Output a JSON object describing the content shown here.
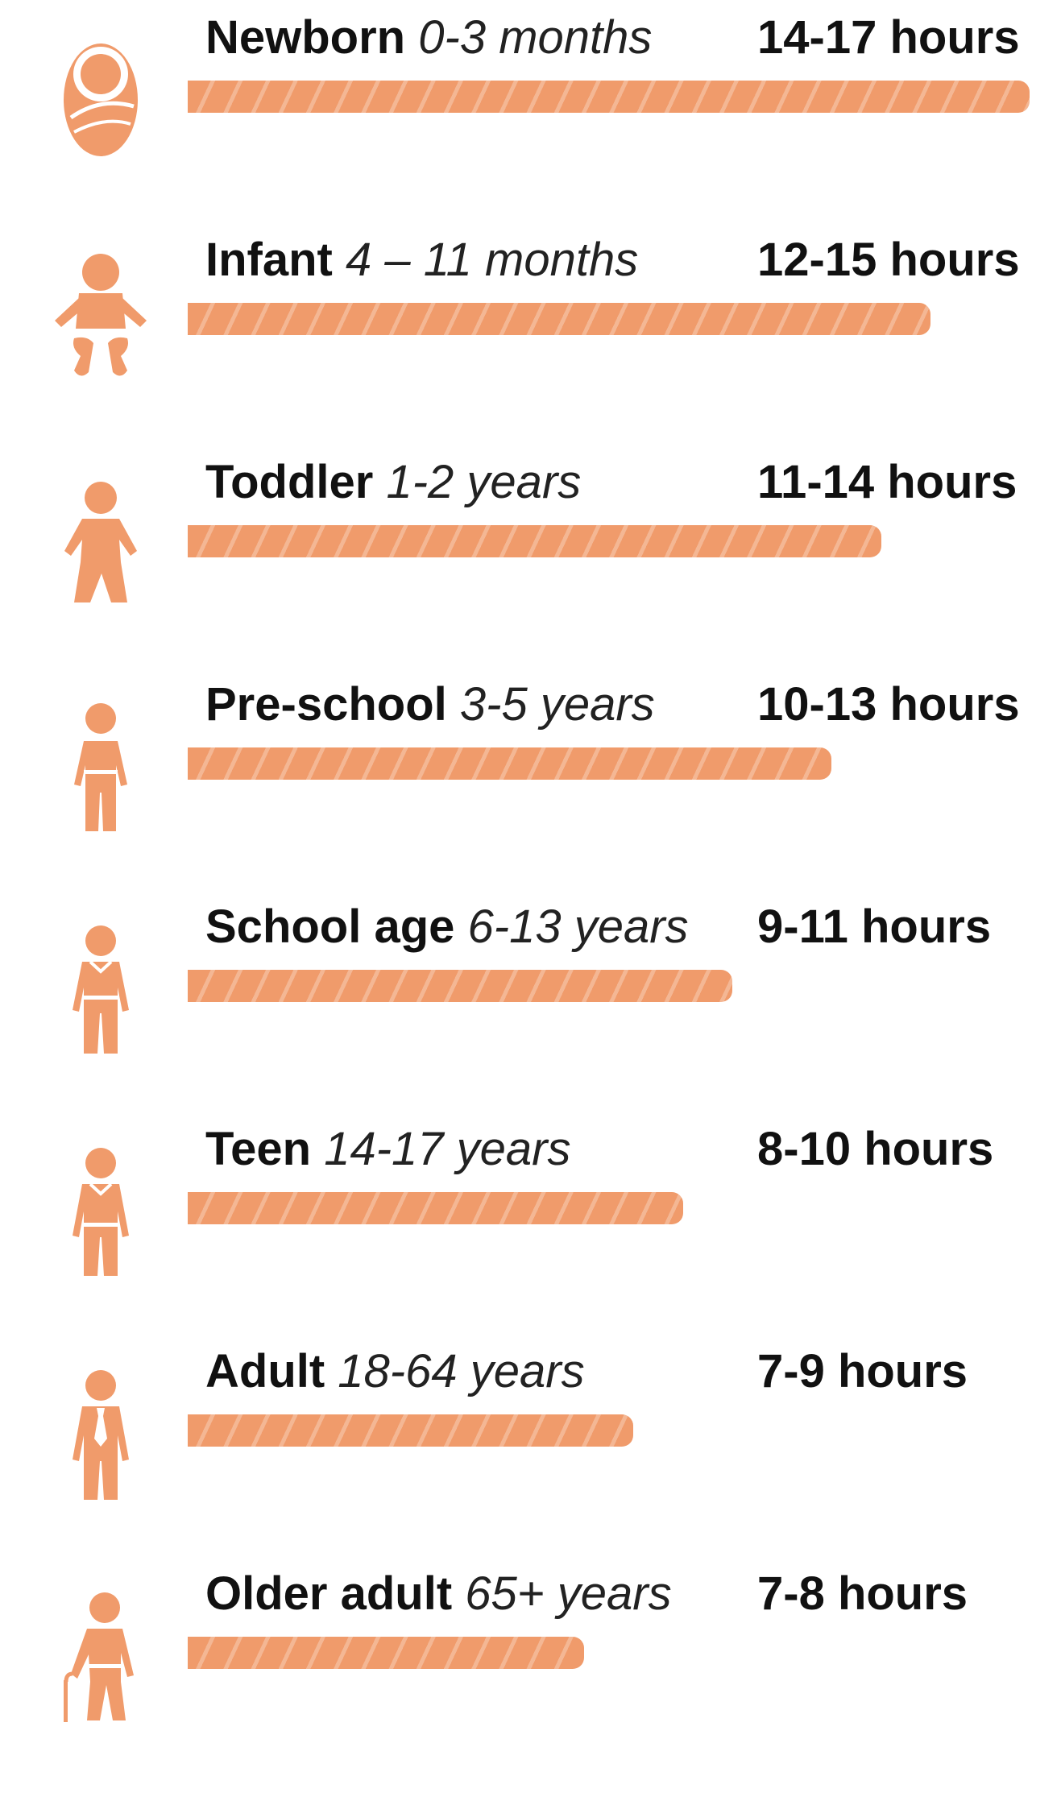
{
  "colors": {
    "bar": "#f09b6b",
    "icon": "#f09b6b",
    "text": "#111111"
  },
  "chart_data": {
    "type": "bar",
    "orientation": "horizontal",
    "grid": false,
    "unit": "hours",
    "xlim": [
      0,
      17
    ],
    "categories": [
      "Newborn 0-3 months",
      "Infant 4 – 11 months",
      "Toddler 1-2 years",
      "Pre-school 3-5 years",
      "School age 6-13 years",
      "Teen 14-17 years",
      "Adult 18-64 years",
      "Older adult 65+ years"
    ],
    "values": [
      17,
      15,
      14,
      13,
      11,
      10,
      9,
      8
    ],
    "rows": [
      {
        "name": "Newborn",
        "range": "0-3 months",
        "hours": "14-17 hours",
        "min": 14,
        "max": 17,
        "icon": "swaddled-baby-icon"
      },
      {
        "name": "Infant",
        "range": "4 – 11 months",
        "hours": "12-15 hours",
        "min": 12,
        "max": 15,
        "icon": "infant-icon"
      },
      {
        "name": "Toddler",
        "range": "1-2 years",
        "hours": "11-14 hours",
        "min": 11,
        "max": 14,
        "icon": "toddler-icon"
      },
      {
        "name": "Pre-school",
        "range": "3-5 years",
        "hours": "10-13 hours",
        "min": 10,
        "max": 13,
        "icon": "preschool-child-icon"
      },
      {
        "name": "School age",
        "range": "6-13 years",
        "hours": "9-11 hours",
        "min": 9,
        "max": 11,
        "icon": "school-child-icon"
      },
      {
        "name": "Teen",
        "range": "14-17 years",
        "hours": "8-10 hours",
        "min": 8,
        "max": 10,
        "icon": "teen-icon"
      },
      {
        "name": "Adult",
        "range": "18-64 years",
        "hours": "7-9 hours",
        "min": 7,
        "max": 9,
        "icon": "adult-with-tie-icon"
      },
      {
        "name": "Older adult",
        "range": "65+ years",
        "hours": "7-8 hours",
        "min": 7,
        "max": 8,
        "icon": "older-adult-with-cane-icon"
      }
    ]
  }
}
